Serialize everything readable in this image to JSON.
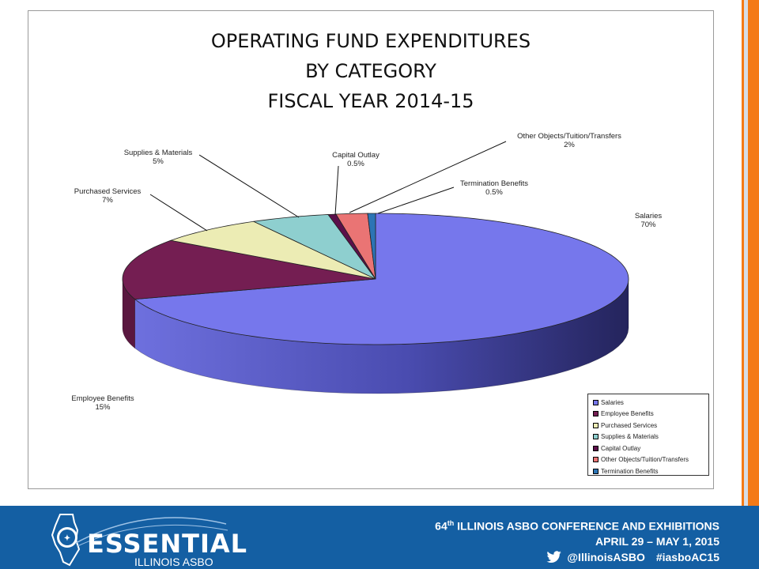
{
  "chart_data": {
    "type": "pie",
    "title_lines": [
      "OPERATING FUND EXPENDITURES",
      "BY CATEGORY",
      "FISCAL YEAR 2014-15"
    ],
    "categories": [
      "Salaries",
      "Employee Benefits",
      "Purchased Services",
      "Supplies & Materials",
      "Capital Outlay",
      "Other Objects/Tuition/Transfers",
      "Termination Benefits"
    ],
    "values": [
      70,
      15,
      7,
      5,
      0.5,
      2,
      0.5
    ],
    "labels": [
      "70%",
      "15%",
      "7%",
      "5%",
      "0.5%",
      "2%",
      "0.5%"
    ],
    "colors": [
      "#7677ec",
      "#741e52",
      "#ececb4",
      "#8ecfcf",
      "#5b0f4a",
      "#ea7474",
      "#2c74b5"
    ],
    "legend_position": "bottom-right",
    "legend_items": [
      "Salaries",
      "Employee Benefits",
      "Purchased Services",
      "Supplies & Materials",
      "Capital Outlay",
      "Other Objects/Tuition/Transfers",
      "Termination Benefits"
    ]
  },
  "footer": {
    "conference_prefix": "64",
    "conference_sup": "th",
    "conference_rest": " ILLINOIS ASBO CONFERENCE AND EXHIBITIONS",
    "dates": "APRIL 29 – MAY 1, 2015",
    "twitter_handle": "@IllinoisASBO",
    "hashtag": "#iasboAC15",
    "logo_word": "ESSENTIAL",
    "logo_sub": "ILLINOIS ASBO"
  },
  "colors": {
    "accent_orange": "#f47a16",
    "footer_blue": "#145fa3"
  }
}
